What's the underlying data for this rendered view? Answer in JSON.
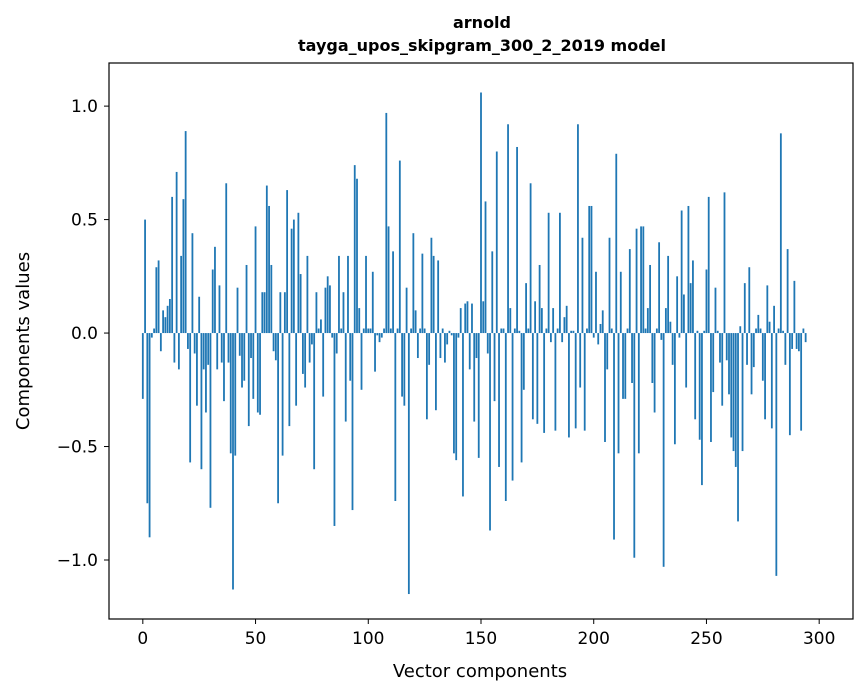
{
  "chart_data": {
    "type": "bar",
    "title": "arnold",
    "subtitle": "tayga_upos_skipgram_300_2_2019 model",
    "xlabel": "Vector components",
    "ylabel": "Components values",
    "xlim": [
      -15,
      315
    ],
    "ylim": [
      -1.26,
      1.19
    ],
    "xticks": [
      0,
      50,
      100,
      150,
      200,
      250,
      300
    ],
    "xtick_labels": [
      "0",
      "50",
      "100",
      "150",
      "200",
      "250",
      "300"
    ],
    "yticks": [
      -1.0,
      -0.5,
      0.0,
      0.5,
      1.0
    ],
    "ytick_labels": [
      "−1.0",
      "−0.5",
      "0.0",
      "0.5",
      "1.0"
    ],
    "bar_color": "#1f77b4",
    "grid": false,
    "values": [
      -0.29,
      0.5,
      -0.75,
      -0.9,
      -0.02,
      0.02,
      0.29,
      0.32,
      -0.08,
      0.1,
      0.07,
      0.12,
      0.15,
      0.6,
      -0.13,
      0.71,
      -0.16,
      0.34,
      0.59,
      0.89,
      -0.07,
      -0.57,
      0.44,
      -0.09,
      -0.32,
      0.16,
      -0.6,
      -0.16,
      -0.35,
      -0.14,
      -0.77,
      0.28,
      0.38,
      -0.16,
      0.21,
      -0.13,
      -0.3,
      0.66,
      -0.13,
      -0.53,
      -1.13,
      -0.54,
      0.2,
      -0.1,
      -0.24,
      -0.21,
      0.3,
      -0.41,
      -0.11,
      -0.29,
      0.47,
      -0.35,
      -0.36,
      0.18,
      0.18,
      0.65,
      0.56,
      0.3,
      -0.08,
      -0.12,
      -0.75,
      0.18,
      -0.54,
      0.18,
      0.63,
      -0.41,
      0.46,
      0.5,
      -0.32,
      0.53,
      0.26,
      -0.18,
      -0.24,
      0.34,
      -0.13,
      -0.05,
      -0.6,
      0.18,
      0.02,
      0.06,
      -0.28,
      0.2,
      0.25,
      0.21,
      -0.02,
      -0.85,
      -0.09,
      0.34,
      0.02,
      0.18,
      -0.39,
      0.34,
      -0.21,
      -0.78,
      0.74,
      0.68,
      0.11,
      -0.25,
      0.02,
      0.34,
      0.02,
      0.02,
      0.27,
      -0.17,
      -0.01,
      -0.04,
      -0.02,
      0.02,
      0.97,
      0.47,
      0.02,
      0.36,
      -0.74,
      0.02,
      0.76,
      -0.28,
      -0.32,
      0.2,
      -1.15,
      0.02,
      0.44,
      0.1,
      -0.11,
      0.02,
      0.35,
      0.02,
      -0.38,
      -0.14,
      0.42,
      0.34,
      -0.34,
      0.32,
      -0.11,
      0.02,
      -0.13,
      -0.05,
      0.01,
      -0.01,
      -0.53,
      -0.56,
      -0.02,
      0.11,
      -0.72,
      0.13,
      0.14,
      -0.16,
      0.13,
      -0.39,
      -0.11,
      -0.55,
      1.06,
      0.14,
      0.58,
      -0.09,
      -0.87,
      0.36,
      -0.3,
      0.8,
      -0.59,
      0.02,
      0.02,
      -0.74,
      0.92,
      0.11,
      -0.65,
      0.02,
      0.82,
      0.01,
      -0.57,
      -0.25,
      0.22,
      0.02,
      0.66,
      -0.38,
      0.14,
      -0.4,
      0.3,
      0.11,
      -0.44,
      0.02,
      0.53,
      -0.04,
      0.11,
      -0.43,
      0.02,
      0.53,
      -0.04,
      0.07,
      0.12,
      -0.46,
      0.01,
      0.01,
      -0.42,
      0.92,
      -0.24,
      0.42,
      -0.43,
      0.02,
      0.56,
      0.56,
      -0.02,
      0.27,
      -0.05,
      0.04,
      0.1,
      -0.48,
      -0.16,
      0.42,
      0.02,
      -0.91,
      0.79,
      -0.53,
      0.27,
      -0.29,
      -0.29,
      0.02,
      0.37,
      -0.22,
      -0.99,
      0.46,
      -0.53,
      0.47,
      0.47,
      0.02,
      0.11,
      0.3,
      -0.22,
      -0.35,
      0.02,
      0.4,
      -0.03,
      -1.03,
      0.11,
      0.34,
      0.05,
      -0.14,
      -0.49,
      0.25,
      -0.02,
      0.54,
      0.17,
      -0.24,
      0.56,
      0.22,
      0.32,
      -0.38,
      0.01,
      -0.47,
      -0.67,
      0.01,
      0.28,
      0.6,
      -0.48,
      -0.26,
      0.2,
      0.01,
      -0.13,
      -0.32,
      0.62,
      -0.12,
      -0.27,
      -0.46,
      -0.52,
      -0.59,
      -0.83,
      0.03,
      -0.52,
      0.22,
      -0.14,
      0.29,
      -0.27,
      -0.15,
      0.02,
      0.08,
      0.02,
      -0.21,
      -0.38,
      0.21,
      0.05,
      -0.42,
      0.12,
      -1.07,
      0.02,
      0.88,
      0.01,
      -0.14,
      0.37,
      -0.45,
      -0.07,
      0.23,
      -0.07,
      -0.08,
      -0.43,
      0.02,
      -0.04
    ]
  }
}
